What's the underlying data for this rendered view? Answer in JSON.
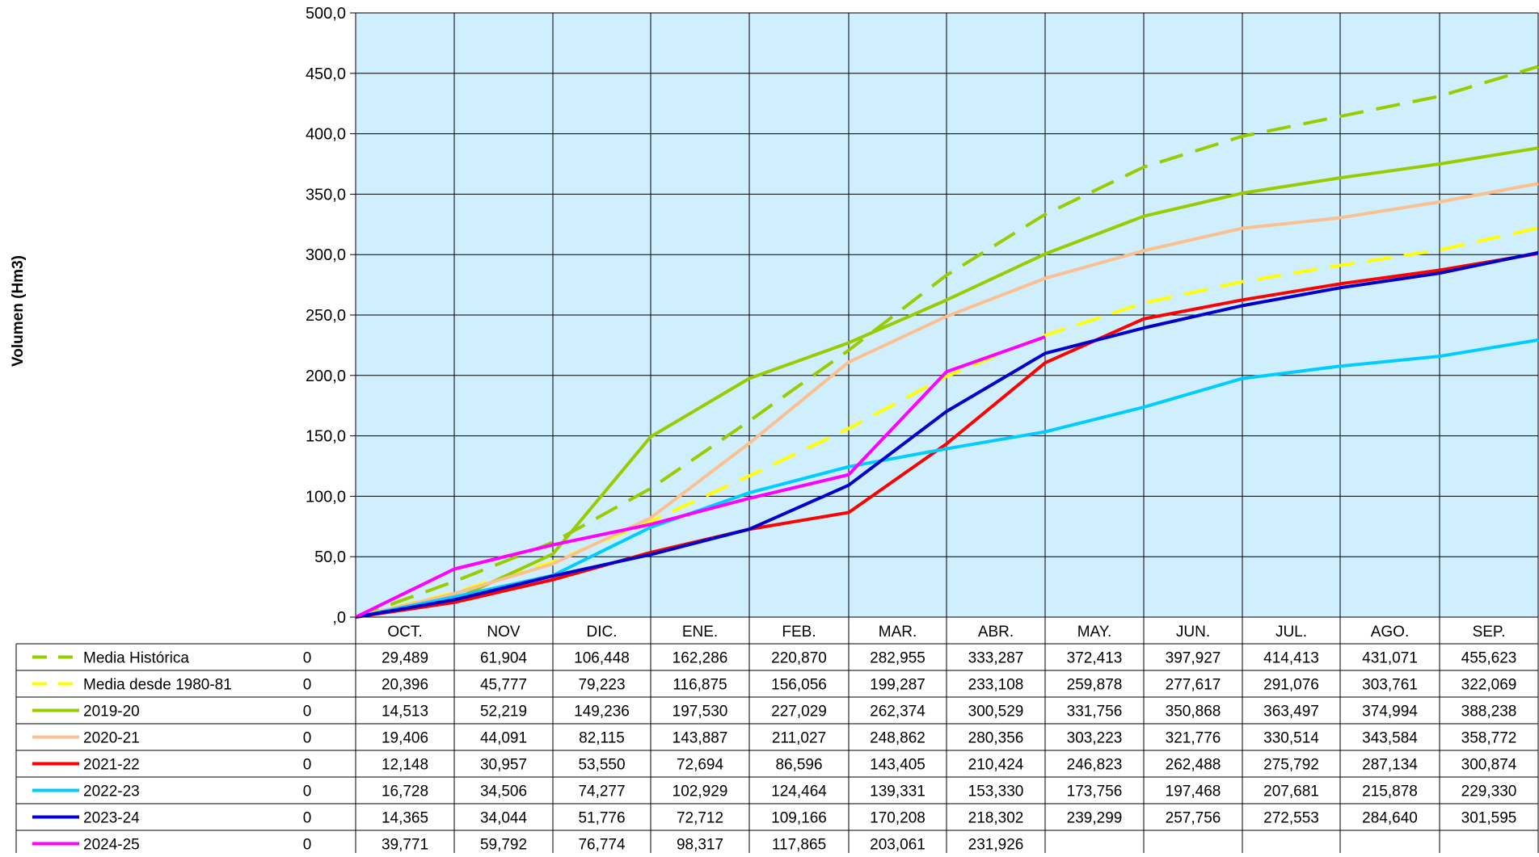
{
  "chart_data": {
    "type": "line",
    "ylabel": "Volumen (Hm3)",
    "ylim": [
      0,
      500
    ],
    "yticks": [
      0,
      50,
      100,
      150,
      200,
      250,
      300,
      350,
      400,
      450,
      500
    ],
    "ytick_labels": [
      ",0",
      "50,0",
      "100,0",
      "150,0",
      "200,0",
      "250,0",
      "300,0",
      "350,0",
      "400,0",
      "450,0",
      "500,0"
    ],
    "grid": true,
    "plot_background": "#cfeefe",
    "legend_placement": "data-table-left",
    "categories": [
      "",
      "OCT.",
      "NOV",
      "DIC.",
      "ENE.",
      "FEB.",
      "MAR.",
      "ABR.",
      "MAY.",
      "JUN.",
      "JUL.",
      "AGO.",
      "SEP."
    ],
    "series": [
      {
        "name": "Media Histórica",
        "color": "#99cc00",
        "dashed": true,
        "values": [
          0,
          29.489,
          61.904,
          106.448,
          162.286,
          220.87,
          282.955,
          333.287,
          372.413,
          397.927,
          414.413,
          431.071,
          455.623
        ],
        "labels": [
          "0",
          "29,489",
          "61,904",
          "106,448",
          "162,286",
          "220,870",
          "282,955",
          "333,287",
          "372,413",
          "397,927",
          "414,413",
          "431,071",
          "455,623"
        ]
      },
      {
        "name": "Media desde 1980-81",
        "color": "#ffff00",
        "dashed": true,
        "values": [
          0,
          20.396,
          45.777,
          79.223,
          116.875,
          156.056,
          199.287,
          233.108,
          259.878,
          277.617,
          291.076,
          303.761,
          322.069
        ],
        "labels": [
          "0",
          "20,396",
          "45,777",
          "79,223",
          "116,875",
          "156,056",
          "199,287",
          "233,108",
          "259,878",
          "277,617",
          "291,076",
          "303,761",
          "322,069"
        ]
      },
      {
        "name": "2019-20",
        "color": "#99cc00",
        "dashed": false,
        "values": [
          0,
          14.513,
          52.219,
          149.236,
          197.53,
          227.029,
          262.374,
          300.529,
          331.756,
          350.868,
          363.497,
          374.994,
          388.238
        ],
        "labels": [
          "0",
          "14,513",
          "52,219",
          "149,236",
          "197,530",
          "227,029",
          "262,374",
          "300,529",
          "331,756",
          "350,868",
          "363,497",
          "374,994",
          "388,238"
        ]
      },
      {
        "name": "2020-21",
        "color": "#fac090",
        "dashed": false,
        "values": [
          0,
          19.406,
          44.091,
          82.115,
          143.887,
          211.027,
          248.862,
          280.356,
          303.223,
          321.776,
          330.514,
          343.584,
          358.772
        ],
        "labels": [
          "0",
          "19,406",
          "44,091",
          "82,115",
          "143,887",
          "211,027",
          "248,862",
          "280,356",
          "303,223",
          "321,776",
          "330,514",
          "343,584",
          "358,772"
        ]
      },
      {
        "name": "2021-22",
        "color": "#ff0000",
        "dashed": false,
        "values": [
          0,
          12.148,
          30.957,
          53.55,
          72.694,
          86.596,
          143.405,
          210.424,
          246.823,
          262.488,
          275.792,
          287.134,
          300.874
        ],
        "labels": [
          "0",
          "12,148",
          "30,957",
          "53,550",
          "72,694",
          "86,596",
          "143,405",
          "210,424",
          "246,823",
          "262,488",
          "275,792",
          "287,134",
          "300,874"
        ]
      },
      {
        "name": "2022-23",
        "color": "#00ccff",
        "dashed": false,
        "values": [
          0,
          16.728,
          34.506,
          74.277,
          102.929,
          124.464,
          139.331,
          153.33,
          173.756,
          197.468,
          207.681,
          215.878,
          229.33
        ],
        "labels": [
          "0",
          "16,728",
          "34,506",
          "74,277",
          "102,929",
          "124,464",
          "139,331",
          "153,330",
          "173,756",
          "197,468",
          "207,681",
          "215,878",
          "229,330"
        ]
      },
      {
        "name": "2023-24",
        "color": "#0000cc",
        "dashed": false,
        "values": [
          0,
          14.365,
          34.044,
          51.776,
          72.712,
          109.166,
          170.208,
          218.302,
          239.299,
          257.756,
          272.553,
          284.64,
          301.595
        ],
        "labels": [
          "0",
          "14,365",
          "34,044",
          "51,776",
          "72,712",
          "109,166",
          "170,208",
          "218,302",
          "239,299",
          "257,756",
          "272,553",
          "284,640",
          "301,595"
        ]
      },
      {
        "name": "2024-25",
        "color": "#ff00ff",
        "dashed": false,
        "values": [
          0,
          39.771,
          59.792,
          76.774,
          98.317,
          117.865,
          203.061,
          231.926,
          null,
          null,
          null,
          null,
          null
        ],
        "labels": [
          "0",
          "39,771",
          "59,792",
          "76,774",
          "98,317",
          "117,865",
          "203,061",
          "231,926",
          "",
          "",
          "",
          "",
          ""
        ]
      }
    ]
  }
}
